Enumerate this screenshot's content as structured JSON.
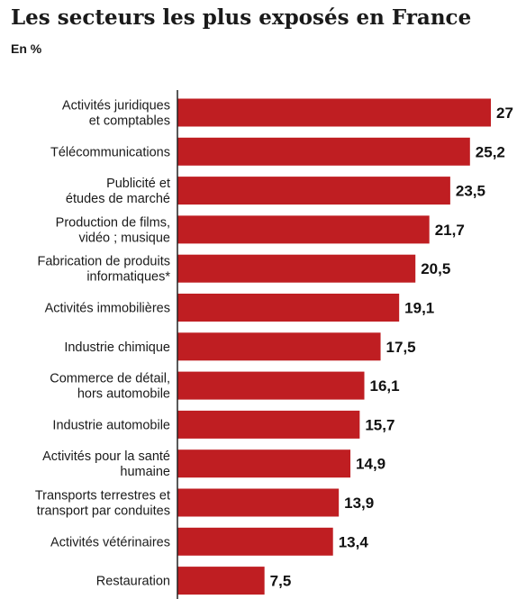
{
  "title": "Les secteurs les plus exposés en France",
  "subtitle": "En %",
  "colors": {
    "bar": "#bf1e22",
    "axis": "#222222",
    "text": "#1a1a1a"
  },
  "chart_data": {
    "type": "bar",
    "orientation": "horizontal",
    "title": "Les secteurs les plus exposés en France",
    "subtitle": "En %",
    "xlim": [
      0,
      27
    ],
    "grid": false,
    "categories": [
      [
        "Activités juridiques",
        "et comptables"
      ],
      [
        "Télécommunications"
      ],
      [
        "Publicité et",
        "études de marché"
      ],
      [
        "Production de films,",
        "vidéo ; musique"
      ],
      [
        "Fabrication de produits",
        "informatiques*"
      ],
      [
        "Activités immobilières"
      ],
      [
        "Industrie chimique"
      ],
      [
        "Commerce de détail,",
        "hors automobile"
      ],
      [
        "Industrie automobile"
      ],
      [
        "Activités pour la santé",
        "humaine"
      ],
      [
        "Transports terrestres et",
        "transport par conduites"
      ],
      [
        "Activités vétérinaires"
      ],
      [
        "Restauration"
      ]
    ],
    "values": [
      27,
      25.2,
      23.5,
      21.7,
      20.5,
      19.1,
      17.5,
      16.1,
      15.7,
      14.9,
      13.9,
      13.4,
      7.5
    ],
    "value_labels": [
      "27",
      "25,2",
      "23,5",
      "21,7",
      "20,5",
      "19,1",
      "17,5",
      "16,1",
      "15,7",
      "14,9",
      "13,9",
      "13,4",
      "7,5"
    ]
  }
}
